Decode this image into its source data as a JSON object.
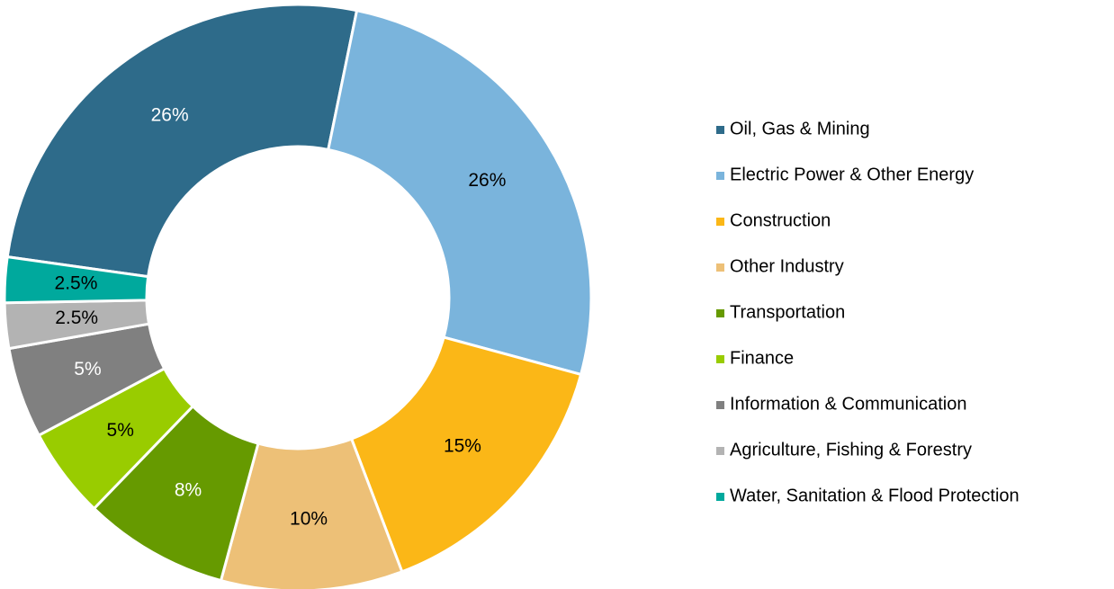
{
  "chart_data": {
    "type": "donut",
    "categories": [
      "Oil, Gas & Mining",
      "Electric Power & Other Energy",
      "Construction",
      "Other Industry",
      "Transportation",
      "Finance",
      "Information & Communication",
      "Agriculture, Fishing & Forestry",
      "Water, Sanitation & Flood Protection"
    ],
    "values": [
      26,
      26,
      15,
      10,
      8,
      5,
      5,
      2.5,
      2.5
    ],
    "value_labels": [
      "26%",
      "26%",
      "15%",
      "10%",
      "8%",
      "5%",
      "5%",
      "2.5%",
      "2.5%"
    ],
    "colors": [
      "#2e6b8a",
      "#7ab4dc",
      "#fbb717",
      "#edc077",
      "#669a00",
      "#99cc00",
      "#808080",
      "#b3b3b3",
      "#00a99d"
    ],
    "label_colors": [
      "#ffffff",
      "#000000",
      "#000000",
      "#000000",
      "#ffffff",
      "#000000",
      "#ffffff",
      "#000000",
      "#000000"
    ],
    "legend": "right"
  }
}
